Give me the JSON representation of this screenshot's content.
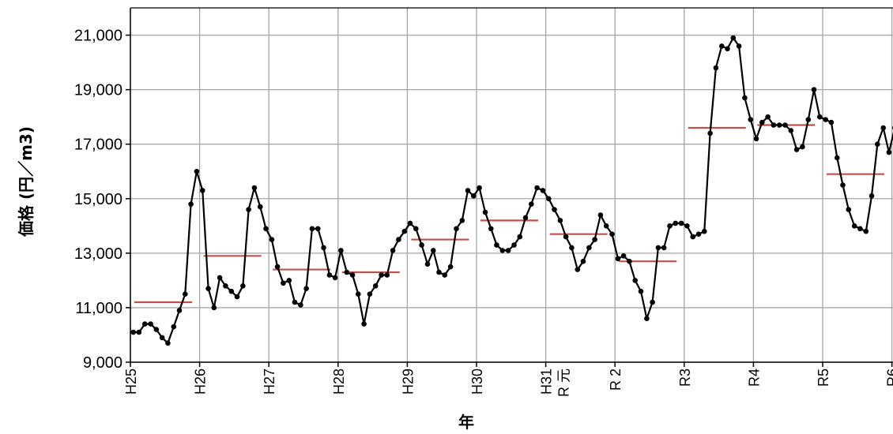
{
  "chart_data": {
    "type": "line",
    "xlabel": "年",
    "ylabel": "価格 (円／m3)",
    "ylim": [
      9000,
      22000
    ],
    "yticks": [
      9000,
      11000,
      13000,
      15000,
      17000,
      19000,
      21000
    ],
    "ytick_labels": [
      "9,000",
      "11,000",
      "13,000",
      "15,000",
      "17,000",
      "19,000",
      "21,000"
    ],
    "grid": true,
    "year_labels": [
      "H25",
      "H26",
      "H27",
      "H28",
      "H29",
      "H30",
      "H31\nR 元",
      "R 2",
      "R3",
      "R4",
      "R5",
      "R6"
    ],
    "series": [
      {
        "color": "#000000",
        "marker": "circle",
        "values": [
          10100,
          10100,
          10400,
          10400,
          10200,
          9900,
          9700,
          10300,
          10900,
          11500,
          14800,
          16000,
          15300,
          11700,
          11000,
          12100,
          11800,
          11600,
          11400,
          11800,
          14600,
          15400,
          14700,
          13900,
          13500,
          12500,
          11900,
          12000,
          11200,
          11100,
          11700,
          13900,
          13900,
          13200,
          12200,
          12100,
          13100,
          12300,
          12200,
          11500,
          10400,
          11500,
          11800,
          12200,
          12200,
          13100,
          13500,
          13800,
          14100,
          13900,
          13300,
          12600,
          13100,
          12300,
          12200,
          12500,
          13900,
          14200,
          15300,
          15100,
          15400,
          14500,
          13900,
          13300,
          13100,
          13100,
          13300,
          13600,
          14300,
          14800,
          15400,
          15300,
          15000,
          14600,
          14200,
          13600,
          13200,
          12400,
          12700,
          13200,
          13500,
          14400,
          14000,
          13700,
          12800,
          12900,
          12700,
          12000,
          11600,
          10600,
          11200,
          13200,
          13200,
          14000,
          14100,
          14100,
          14000,
          13600,
          13700,
          13800,
          17400,
          19800,
          20600,
          20500,
          20900,
          20600,
          18700,
          17900,
          17200,
          17800,
          18000,
          17700,
          17700,
          17700,
          17500,
          16800,
          16900,
          17900,
          19000,
          18000,
          17900,
          17800,
          16500,
          15500,
          14600,
          14000,
          13900,
          13800,
          15100,
          17000,
          17600,
          16700,
          17600
        ]
      },
      {
        "color": "#c0504d",
        "type": "annual_average",
        "values": [
          11200,
          12900,
          12400,
          12300,
          13500,
          14200,
          13700,
          12700,
          17600,
          17700,
          15900
        ]
      }
    ]
  }
}
